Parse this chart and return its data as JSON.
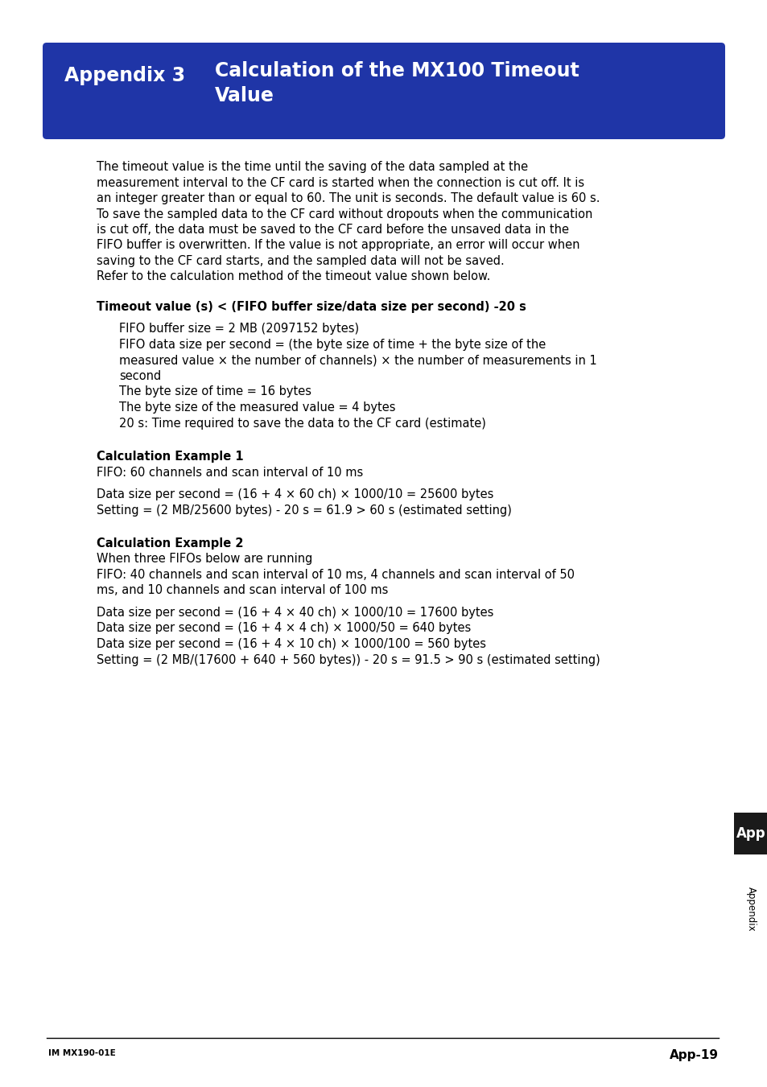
{
  "header_bg_color": "#1f35a7",
  "header_text_color": "#ffffff",
  "header_label": "Appendix 3",
  "header_title": "Calculation of the MX100 Timeout\nValue",
  "body_bg": "#ffffff",
  "body_text_color": "#000000",
  "footer_left": "IM MX190-01E",
  "footer_right": "App-19",
  "sidebar_app_bg": "#1a1a1a",
  "sidebar_app_text": "App",
  "sidebar_appendix_text": "Appendix",
  "paragraph1_lines": [
    "The timeout value is the time until the saving of the data sampled at the",
    "measurement interval to the CF card is started when the connection is cut off. It is",
    "an integer greater than or equal to 60. The unit is seconds. The default value is 60 s.",
    "To save the sampled data to the CF card without dropouts when the communication",
    "is cut off, the data must be saved to the CF card before the unsaved data in the",
    "FIFO buffer is overwritten. If the value is not appropriate, an error will occur when",
    "saving to the CF card starts, and the sampled data will not be saved.",
    "Refer to the calculation method of the timeout value shown below."
  ],
  "timeout_formula_bold": "Timeout value (s) < (FIFO buffer size/data size per second) -20 s",
  "bullet1": "FIFO buffer size = 2 MB (2097152 bytes)",
  "bullet2_lines": [
    "FIFO data size per second = (the byte size of time + the byte size of the",
    "measured value × the number of channels) × the number of measurements in 1",
    "second"
  ],
  "bullet3": "The byte size of time = 16 bytes",
  "bullet4": "The byte size of the measured value = 4 bytes",
  "bullet5": "20 s: Time required to save the data to the CF card (estimate)",
  "calc_ex1_bold": "Calculation Example 1",
  "calc_ex1_line1": "FIFO: 60 channels and scan interval of 10 ms",
  "calc_ex1_line2": "Data size per second = (16 + 4 × 60 ch) × 1000/10 = 25600 bytes",
  "calc_ex1_line3": "Setting = (2 MB/25600 bytes) - 20 s = 61.9 > 60 s (estimated setting)",
  "calc_ex2_bold": "Calculation Example 2",
  "calc_ex2_line1": "When three FIFOs below are running",
  "calc_ex2_line2a": "FIFO: 40 channels and scan interval of 10 ms, 4 channels and scan interval of 50",
  "calc_ex2_line2b": "ms, and 10 channels and scan interval of 100 ms",
  "calc_ex2_line3": "Data size per second = (16 + 4 × 40 ch) × 1000/10 = 17600 bytes",
  "calc_ex2_line4": "Data size per second = (16 + 4 × 4 ch) × 1000/50 = 640 bytes",
  "calc_ex2_line5": "Data size per second = (16 + 4 × 10 ch) × 1000/100 = 560 bytes",
  "calc_ex2_line6": "Setting = (2 MB/(17600 + 640 + 560 bytes)) - 20 s = 91.5 > 90 s (estimated setting)"
}
